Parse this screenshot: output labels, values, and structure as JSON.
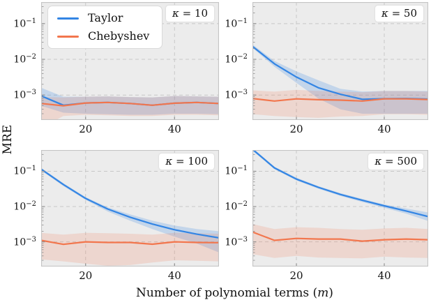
{
  "figure": {
    "ylabel": "MRE",
    "xlabel_prefix": "Number of polynomial terms (",
    "xlabel_var": "m",
    "xlabel_suffix": ")",
    "colors": {
      "taylor": "#3385e4",
      "chebyshev": "#f2764d",
      "plot_bg": "#ececec",
      "grid": "#c7c7c7",
      "spine": "#c4c4c4",
      "tick": "#8a8a8a",
      "text": "#111111"
    },
    "legend": {
      "position": "upper-left-of-first-subplot",
      "items": [
        {
          "label": "Taylor",
          "color_key": "taylor"
        },
        {
          "label": "Chebyshev",
          "color_key": "chebyshev"
        }
      ]
    }
  },
  "chart_data": [
    {
      "type": "line",
      "title_var": "κ",
      "title_rest": "= 10",
      "xlabel": "Number of polynomial terms (m)",
      "ylabel": "MRE",
      "grid": "dashed",
      "xlim": [
        10,
        50
      ],
      "ylim": [
        0.0002,
        0.4
      ],
      "xticks": [
        20,
        40
      ],
      "yticks": [
        {
          "v": 0.1,
          "base": "10",
          "exp": "−1"
        },
        {
          "v": 0.01,
          "base": "10",
          "exp": "−2"
        },
        {
          "v": 0.001,
          "base": "10",
          "exp": "−3"
        }
      ],
      "x": [
        10,
        15,
        20,
        25,
        30,
        35,
        40,
        45,
        50
      ],
      "series": [
        {
          "name": "Taylor",
          "color_key": "taylor",
          "values": [
            0.00095,
            0.00052,
            0.0006,
            0.00062,
            0.00058,
            0.00052,
            0.00059,
            0.00062,
            0.00058
          ],
          "band_low": [
            0.0005,
            0.00032,
            0.0003,
            0.00029,
            0.00028,
            0.00028,
            0.0003,
            0.0003,
            0.00029
          ],
          "band_high": [
            0.0016,
            0.0009,
            0.0009,
            0.00092,
            0.00088,
            0.00086,
            0.00094,
            0.00092,
            0.0009
          ]
        },
        {
          "name": "Chebyshev",
          "color_key": "chebyshev",
          "values": [
            0.00058,
            0.0005,
            0.0006,
            0.00062,
            0.00058,
            0.00052,
            0.00059,
            0.00062,
            0.00058
          ],
          "band_low": [
            0.00012,
            0.00026,
            0.00028,
            0.00027,
            0.00026,
            0.00026,
            0.00028,
            0.00028,
            0.00027
          ],
          "band_high": [
            0.00088,
            0.00086,
            0.0009,
            0.00092,
            0.00088,
            0.00086,
            0.00094,
            0.00092,
            0.0009
          ]
        }
      ]
    },
    {
      "type": "line",
      "title_var": "κ",
      "title_rest": "= 50",
      "xlabel": "Number of polynomial terms (m)",
      "ylabel": "MRE",
      "grid": "dashed",
      "xlim": [
        10,
        50
      ],
      "ylim": [
        0.0002,
        0.4
      ],
      "xticks": [
        20,
        40
      ],
      "yticks": [
        {
          "v": 0.1,
          "base": "10",
          "exp": "−1"
        },
        {
          "v": 0.01,
          "base": "10",
          "exp": "−2"
        },
        {
          "v": 0.001,
          "base": "10",
          "exp": "−3"
        }
      ],
      "x": [
        10,
        15,
        20,
        25,
        30,
        35,
        40,
        45,
        50
      ],
      "series": [
        {
          "name": "Taylor",
          "color_key": "taylor",
          "values": [
            0.023,
            0.0075,
            0.0032,
            0.0016,
            0.00105,
            0.00076,
            0.00079,
            0.0008,
            0.00077
          ],
          "band_low": [
            0.021,
            0.0062,
            0.0022,
            0.0008,
            0.0004,
            0.0003,
            0.0003,
            0.0003,
            0.0003
          ],
          "band_high": [
            0.026,
            0.009,
            0.0046,
            0.0026,
            0.0015,
            0.00125,
            0.0013,
            0.0013,
            0.0013
          ]
        },
        {
          "name": "Chebyshev",
          "color_key": "chebyshev",
          "values": [
            0.0008,
            0.00068,
            0.00078,
            0.00074,
            0.00072,
            0.00068,
            0.00078,
            0.00078,
            0.00075
          ],
          "band_low": [
            0.00029,
            0.00026,
            0.00024,
            0.00023,
            0.00025,
            0.00026,
            0.00029,
            0.00029,
            0.00028
          ],
          "band_high": [
            0.00135,
            0.00125,
            0.0014,
            0.0013,
            0.00125,
            0.0012,
            0.0013,
            0.0013,
            0.00125
          ]
        }
      ]
    },
    {
      "type": "line",
      "title_var": "κ",
      "title_rest": "= 100",
      "xlabel": "Number of polynomial terms (m)",
      "ylabel": "MRE",
      "grid": "dashed",
      "xlim": [
        10,
        50
      ],
      "ylim": [
        0.0002,
        0.4
      ],
      "xticks": [
        20,
        40
      ],
      "yticks": [
        {
          "v": 0.1,
          "base": "10",
          "exp": "−1"
        },
        {
          "v": 0.01,
          "base": "10",
          "exp": "−2"
        },
        {
          "v": 0.001,
          "base": "10",
          "exp": "−3"
        }
      ],
      "x": [
        10,
        15,
        20,
        25,
        30,
        35,
        40,
        45,
        50
      ],
      "series": [
        {
          "name": "Taylor",
          "color_key": "taylor",
          "values": [
            0.115,
            0.042,
            0.017,
            0.0085,
            0.005,
            0.0032,
            0.0022,
            0.00165,
            0.0013
          ],
          "band_low": [
            0.105,
            0.038,
            0.0155,
            0.0072,
            0.004,
            0.0023,
            0.0014,
            0.0009,
            0.0005
          ],
          "band_high": [
            0.125,
            0.046,
            0.0185,
            0.0095,
            0.006,
            0.004,
            0.0029,
            0.0023,
            0.002
          ]
        },
        {
          "name": "Chebyshev",
          "color_key": "chebyshev",
          "values": [
            0.0011,
            0.00085,
            0.001,
            0.00096,
            0.00096,
            0.00086,
            0.001,
            0.00096,
            0.00095
          ],
          "band_low": [
            0.00032,
            0.00028,
            0.00024,
            0.00021,
            0.00022,
            0.00026,
            0.0003,
            0.00029,
            0.00028
          ],
          "band_high": [
            0.0018,
            0.0016,
            0.0018,
            0.00175,
            0.0017,
            0.0016,
            0.0018,
            0.00175,
            0.0017
          ]
        }
      ]
    },
    {
      "type": "line",
      "title_var": "κ",
      "title_rest": "= 500",
      "xlabel": "Number of polynomial terms (m)",
      "ylabel": "MRE",
      "grid": "dashed",
      "xlim": [
        10,
        50
      ],
      "ylim": [
        0.0002,
        0.4
      ],
      "xticks": [
        20,
        40
      ],
      "yticks": [
        {
          "v": 0.1,
          "base": "10",
          "exp": "−1"
        },
        {
          "v": 0.01,
          "base": "10",
          "exp": "−2"
        },
        {
          "v": 0.001,
          "base": "10",
          "exp": "−3"
        }
      ],
      "x": [
        10,
        15,
        20,
        25,
        30,
        35,
        40,
        45,
        50
      ],
      "series": [
        {
          "name": "Taylor",
          "color_key": "taylor",
          "values": [
            0.42,
            0.125,
            0.06,
            0.035,
            0.022,
            0.015,
            0.0105,
            0.0075,
            0.0052
          ],
          "band_low": [
            0.38,
            0.115,
            0.055,
            0.032,
            0.02,
            0.0135,
            0.0092,
            0.0063,
            0.0039
          ],
          "band_high": [
            0.46,
            0.135,
            0.066,
            0.038,
            0.024,
            0.0165,
            0.0115,
            0.0088,
            0.0068
          ]
        },
        {
          "name": "Chebyshev",
          "color_key": "chebyshev",
          "values": [
            0.0019,
            0.0011,
            0.00125,
            0.0012,
            0.0012,
            0.00105,
            0.00115,
            0.0012,
            0.00115
          ],
          "band_low": [
            0.00045,
            0.00035,
            0.0004,
            0.00036,
            0.00035,
            0.00034,
            0.00038,
            0.00036,
            0.00035
          ],
          "band_high": [
            0.0032,
            0.0023,
            0.0026,
            0.0025,
            0.0023,
            0.0022,
            0.0024,
            0.0025,
            0.0023
          ]
        }
      ]
    }
  ]
}
